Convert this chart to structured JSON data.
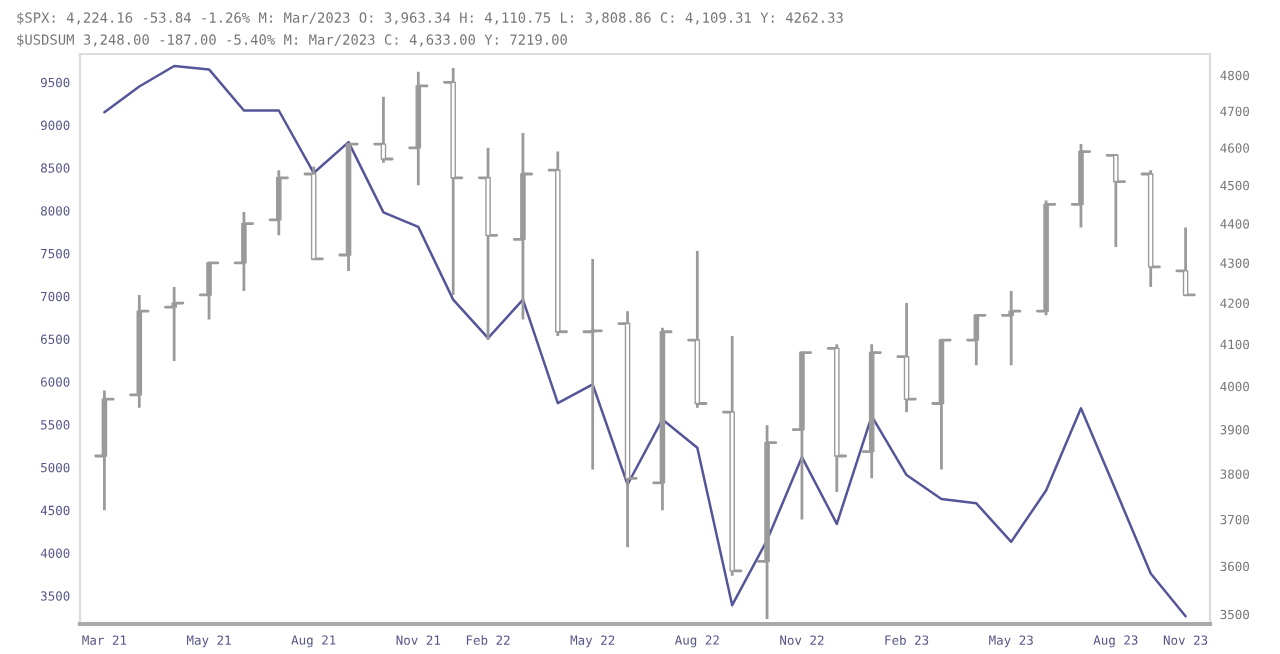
{
  "chart_data": {
    "type": "candlestick",
    "annotations": [
      "$SPX: 4,224.16 -53.84 -1.26% M: Mar/2023 O: 3,963.34 H: 4,110.75 L: 3,808.86 C: 4,109.31 Y: 4262.33",
      "$USDSUM 3,248.00 -187.00 -5.40% M: Mar/2023 C: 4,633.00 Y: 7219.00"
    ],
    "categories": [
      "Mar 21",
      null,
      null,
      "May 21",
      null,
      null,
      "Aug 21",
      null,
      null,
      "Nov 21",
      null,
      "Feb 22",
      null,
      null,
      "May 22",
      null,
      null,
      "Aug 22",
      null,
      null,
      "Nov 22",
      null,
      null,
      "Feb 23",
      null,
      null,
      "May 23",
      null,
      null,
      "Aug 23",
      null,
      "Nov 23"
    ],
    "series": [
      {
        "type": "line",
        "axis": "y",
        "color": "#55559a",
        "values": [
          9150,
          9450,
          9690,
          9650,
          9170,
          9170,
          8440,
          8800,
          7980,
          7810,
          6960,
          6510,
          6960,
          5750,
          5970,
          4800,
          5560,
          5230,
          3390,
          4150,
          5120,
          4340,
          5600,
          4910,
          4630,
          4580,
          4130,
          4730,
          5690,
          4730,
          3760,
          3260
        ]
      },
      {
        "axis": "y2",
        "color": "#9a9a9a",
        "ohlc": [
          [
            3840,
            3990,
            3720,
            3970
          ],
          [
            3980,
            4220,
            3950,
            4180
          ],
          [
            4190,
            4240,
            4060,
            4200
          ],
          [
            4220,
            4300,
            4160,
            4300
          ],
          [
            4300,
            4430,
            4230,
            4400
          ],
          [
            4410,
            4540,
            4370,
            4520
          ],
          [
            4530,
            4550,
            4310,
            4310
          ],
          [
            4320,
            4610,
            4280,
            4610
          ],
          [
            4610,
            4740,
            4560,
            4570
          ],
          [
            4600,
            4810,
            4500,
            4770
          ],
          [
            4780,
            4820,
            4220,
            4520
          ],
          [
            4520,
            4600,
            4110,
            4370
          ],
          [
            4360,
            4640,
            4160,
            4530
          ],
          [
            4540,
            4590,
            4120,
            4130
          ],
          [
            4130,
            4310,
            3810,
            4132
          ],
          [
            4150,
            4180,
            3640,
            3790
          ],
          [
            3780,
            4140,
            3720,
            4130
          ],
          [
            4110,
            4330,
            3950,
            3960
          ],
          [
            3940,
            4120,
            3580,
            3590
          ],
          [
            3610,
            3910,
            3490,
            3870
          ],
          [
            3900,
            4080,
            3700,
            4080
          ],
          [
            4090,
            4100,
            3760,
            3840
          ],
          [
            3850,
            4100,
            3790,
            4080
          ],
          [
            4070,
            4200,
            3940,
            3970
          ],
          [
            3960,
            4110,
            3810,
            4110
          ],
          [
            4110,
            4170,
            4050,
            4170
          ],
          [
            4170,
            4230,
            4050,
            4180
          ],
          [
            4180,
            4460,
            4170,
            4450
          ],
          [
            4450,
            4610,
            4390,
            4590
          ],
          [
            4580,
            4580,
            4340,
            4510
          ],
          [
            4530,
            4540,
            4240,
            4290
          ],
          [
            4280,
            4390,
            4220,
            4220
          ]
        ]
      }
    ],
    "ylim": [
      3170,
      9830
    ],
    "yticks": [
      3500,
      4000,
      4500,
      5000,
      5500,
      6000,
      6500,
      7000,
      7500,
      8000,
      8500,
      9000,
      9500
    ],
    "log": "y2",
    "y2lim": [
      3480,
      4860
    ],
    "y2ticks": [
      3500,
      3600,
      3700,
      3800,
      3900,
      4000,
      4100,
      4200,
      4300,
      4400,
      4500,
      4600,
      4700,
      4800
    ],
    "grid": false,
    "legend": false
  }
}
